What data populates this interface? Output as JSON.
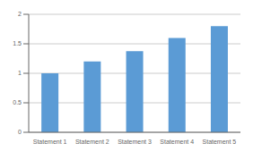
{
  "chart_data": {
    "type": "bar",
    "categories": [
      "Statement 1",
      "Statement 2",
      "Statement 3",
      "Statement 4",
      "Statement 5"
    ],
    "values": [
      1.0,
      1.2,
      1.375,
      1.6,
      1.8
    ],
    "color": "#5B9BD5",
    "ylim": [
      0,
      2.0
    ],
    "yticks": [
      0,
      0.5,
      1.0,
      1.5,
      2.0
    ],
    "grid": true
  }
}
